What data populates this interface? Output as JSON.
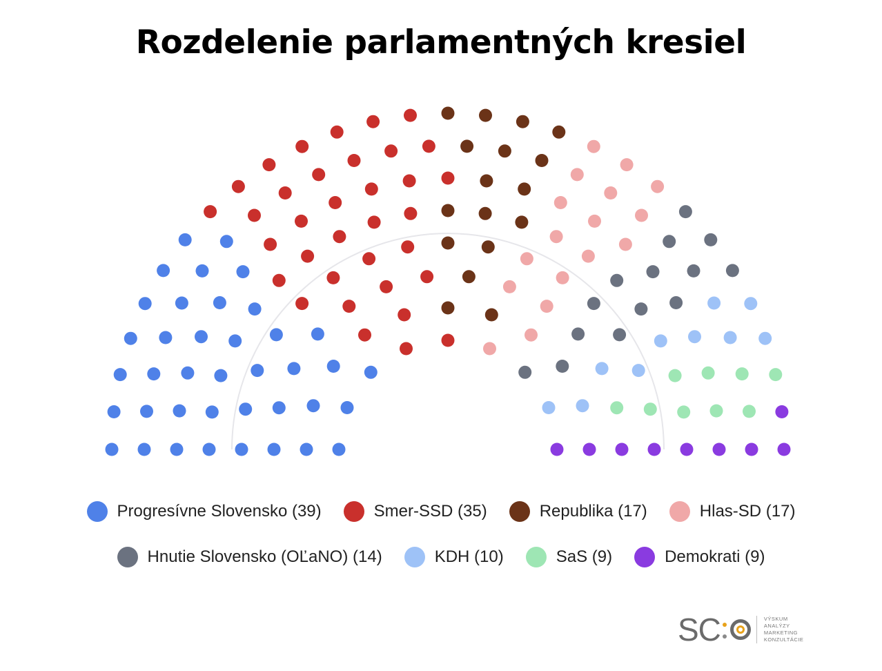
{
  "chart_data": {
    "type": "parliament",
    "title": "Rozdelenie parlamentných kresiel",
    "total_seats": 150,
    "parties": [
      {
        "name": "Progresívne Slovensko",
        "seats": 39,
        "color": "#4f81e8",
        "label": "Progresívne Slovensko (39)"
      },
      {
        "name": "Smer-SSD",
        "seats": 35,
        "color": "#c9302c",
        "label": "Smer-SSD (35)"
      },
      {
        "name": "Republika",
        "seats": 17,
        "color": "#6b3318",
        "label": "Republika (17)"
      },
      {
        "name": "Hlas-SD",
        "seats": 17,
        "color": "#f0a8a8",
        "label": "Hlas-SD (17)"
      },
      {
        "name": "Hnutie Slovensko (OĽaNO)",
        "seats": 14,
        "color": "#6b7280",
        "label": "Hnutie Slovensko (OĽaNO) (14)"
      },
      {
        "name": "KDH",
        "seats": 10,
        "color": "#9ec2f7",
        "label": "KDH (10)"
      },
      {
        "name": "SaS",
        "seats": 9,
        "color": "#9ee6b4",
        "label": "SaS (9)"
      },
      {
        "name": "Demokrati",
        "seats": 9,
        "color": "#8a3be0",
        "label": "Demokrati (9)"
      }
    ],
    "majority_arc": true
  },
  "logo": {
    "mark_left": "SC",
    "lines": [
      "VÝSKUM",
      "ANALÝZY",
      "MARKETING",
      "KONZULTÁCIE"
    ]
  }
}
